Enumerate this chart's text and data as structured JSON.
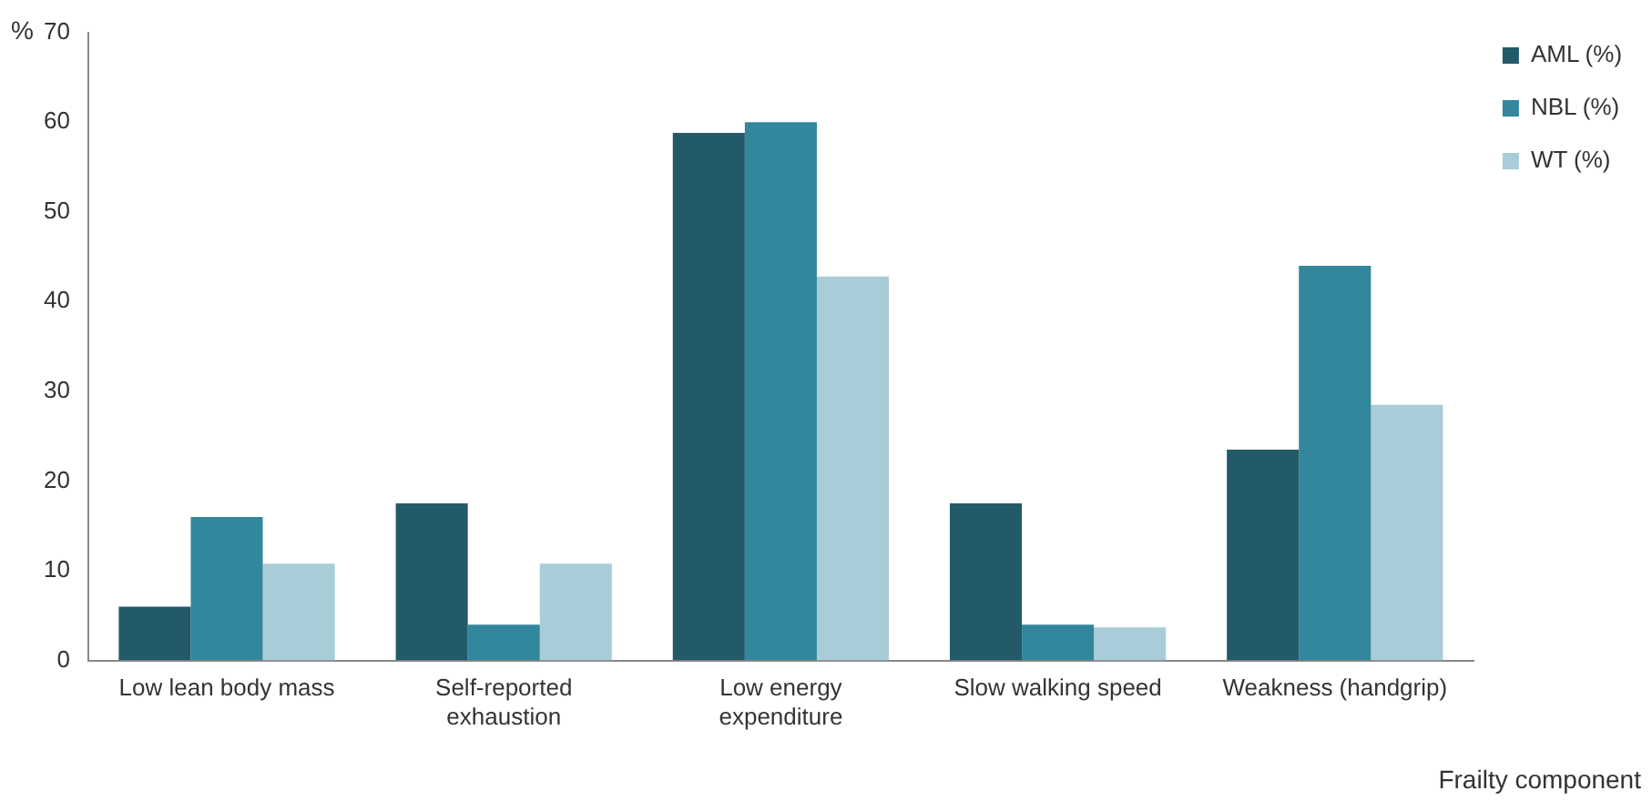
{
  "chart_data": {
    "type": "bar",
    "ylabel": "%",
    "xlabel": "Frailty component",
    "categories": [
      "Low lean body mass",
      "Self-reported exhaustion",
      "Low energy expenditure",
      "Slow walking speed",
      "Weakness (handgrip)"
    ],
    "series": [
      {
        "name": "AML (%)",
        "color": "#235a6a",
        "values": [
          6,
          17.5,
          58.8,
          17.5,
          23.5
        ]
      },
      {
        "name": "NBL (%)",
        "color": "#33879c",
        "values": [
          16,
          4,
          60,
          4,
          44
        ]
      },
      {
        "name": "WT (%)",
        "color": "#a8cdd8",
        "values": [
          10.8,
          10.8,
          42.8,
          3.7,
          28.5
        ]
      }
    ],
    "ylim": [
      0,
      70
    ],
    "yticks": [
      0,
      10,
      20,
      30,
      40,
      50,
      60,
      70
    ],
    "grid": false,
    "legend": "top right"
  }
}
